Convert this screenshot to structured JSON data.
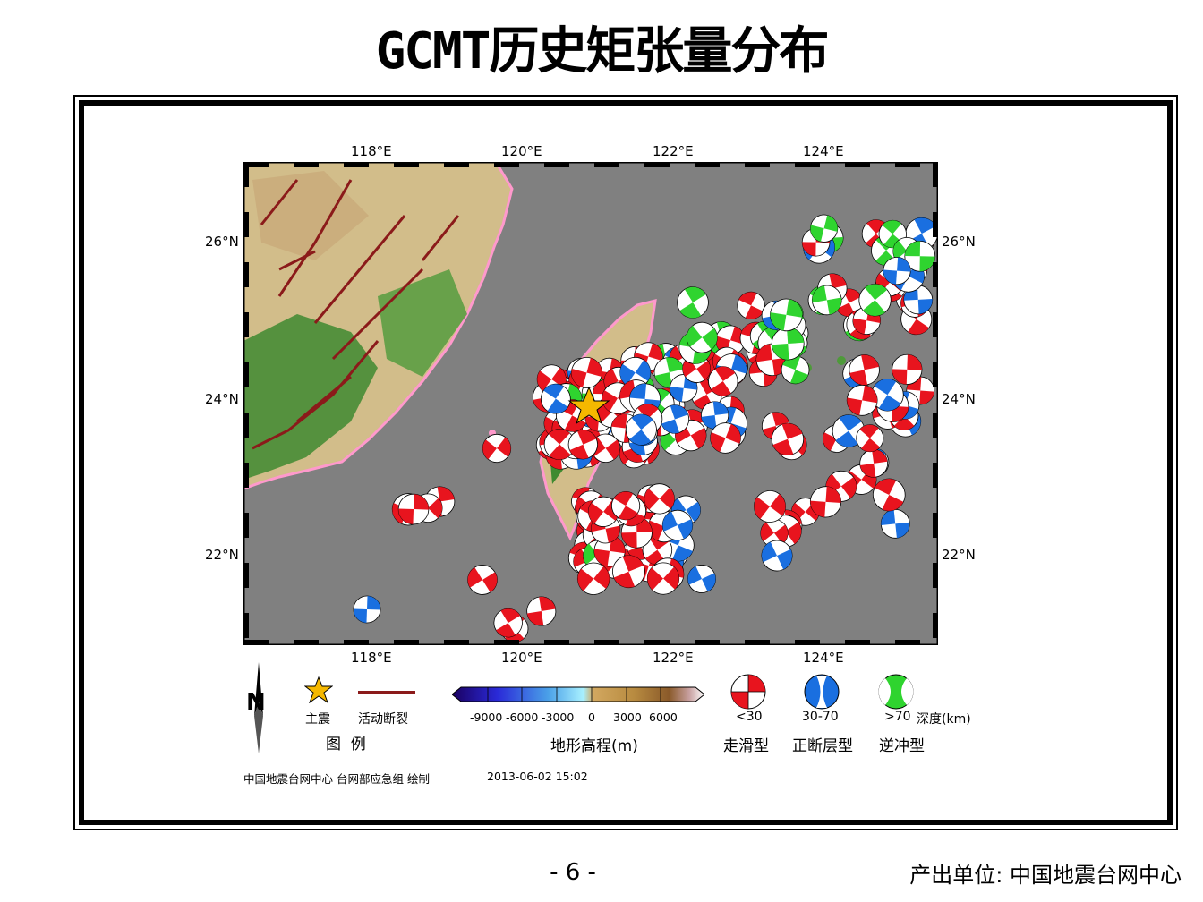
{
  "title": "GCMT历史矩张量分布",
  "axes": {
    "lon_labels": [
      "118°E",
      "120°E",
      "122°E",
      "124°E"
    ],
    "lat_labels": [
      "26°N",
      "24°N",
      "22°N"
    ]
  },
  "colors": {
    "sea": "#808080",
    "land_light": "#d9c9a0",
    "land_dark": "#3a7d2c",
    "coast": "#ff99cc",
    "fault": "#8b1a1a",
    "shallow": "#e8141e",
    "intermediate": "#1a6fe0",
    "deep": "#2fd42f",
    "star": "#f5b800"
  },
  "legend": {
    "north_label": "N",
    "main_shock_label": "主震",
    "fault_label": "活动断裂",
    "legend_title": "图  例",
    "colorbar_ticks": [
      "-9000",
      "-6000",
      "-3000",
      "0",
      "3000",
      "6000"
    ],
    "colorbar_label": "地形高程(m)",
    "depth_labels": [
      "<30",
      "30-70",
      ">70"
    ],
    "depth_unit_label": "深度(km)",
    "mechanism_labels": [
      "走滑型",
      "正断层型",
      "逆冲型"
    ]
  },
  "credits": {
    "maker": "中国地震台网中心 台网部应急组 绘制",
    "datetime": "2013-06-02 15:02"
  },
  "footer": {
    "page_number": "- 6 -",
    "producer": "产出单位: 中国地震台网中心"
  }
}
